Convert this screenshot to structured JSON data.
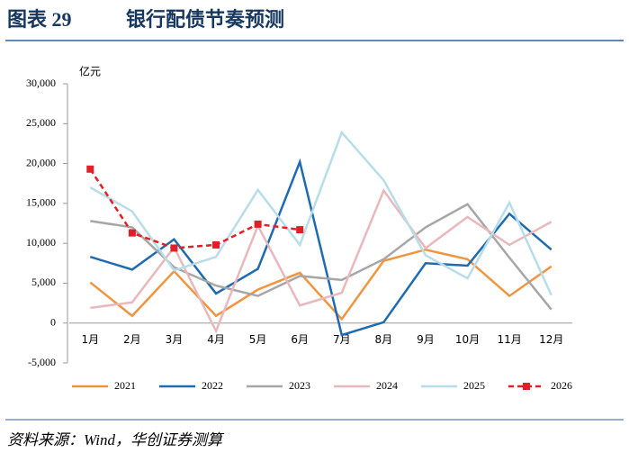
{
  "header": {
    "figure_label": "图表 29",
    "title": "银行配债节奏预测"
  },
  "chart_data": {
    "type": "line",
    "y_unit": "亿元",
    "categories": [
      "1月",
      "2月",
      "3月",
      "4月",
      "5月",
      "6月",
      "7月",
      "8月",
      "9月",
      "10月",
      "11月",
      "12月"
    ],
    "ylim": [
      -5000,
      30000
    ],
    "yticks": [
      {
        "value": -5000,
        "label": "-5,000"
      },
      0,
      {
        "value": 5000,
        "label": "5,000"
      },
      {
        "value": 10000,
        "label": "10,000"
      },
      {
        "value": 15000,
        "label": "15,000"
      },
      {
        "value": 20000,
        "label": "20,000"
      },
      {
        "value": 25000,
        "label": "25,000"
      },
      {
        "value": 30000,
        "label": "30,000"
      }
    ],
    "legend": "bottom",
    "series": [
      {
        "name": "2021",
        "color": "#f0953f",
        "values": [
          5100,
          900,
          6500,
          900,
          4200,
          6300,
          500,
          7800,
          9200,
          8000,
          3400,
          7100
        ]
      },
      {
        "name": "2022",
        "color": "#1f6bb0",
        "values": [
          8300,
          6700,
          10500,
          3700,
          6800,
          20200,
          -1500,
          100,
          7500,
          7200,
          13700,
          9200
        ]
      },
      {
        "name": "2023",
        "color": "#a6a6a6",
        "values": [
          12800,
          12000,
          7000,
          4700,
          3400,
          5900,
          5400,
          8000,
          12000,
          14900,
          8200,
          1700
        ]
      },
      {
        "name": "2024",
        "color": "#e8b8bc",
        "values": [
          1900,
          2600,
          9500,
          -1000,
          12200,
          2200,
          3800,
          16600,
          9400,
          13300,
          9800,
          12700
        ]
      },
      {
        "name": "2025",
        "color": "#b7dde9",
        "values": [
          17000,
          14000,
          6600,
          8300,
          16700,
          9800,
          23900,
          17900,
          8500,
          5600,
          15100,
          3500
        ]
      },
      {
        "name": "2026",
        "color": "#e01f26",
        "dashed": true,
        "markers": true,
        "values": [
          19300,
          11300,
          9400,
          9800,
          12400,
          11700,
          null,
          null,
          null,
          null,
          null,
          null
        ]
      }
    ]
  },
  "footer": {
    "source": "资料来源：Wind，华创证券测算"
  }
}
